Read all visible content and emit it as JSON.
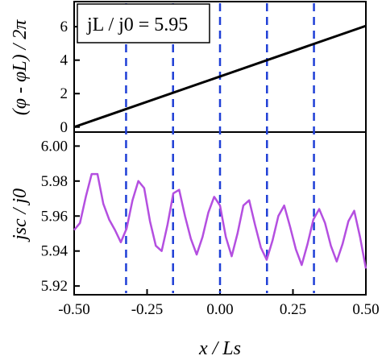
{
  "colors": {
    "phase_line": "#000000",
    "current_line": "#b44fe0",
    "dashed": "#1f3fd6",
    "frame": "#000000"
  },
  "top_axis_title": "(φ - φL) / 2π",
  "bottom_axis_title": "jsc / j0",
  "x_axis_title": "x / Ls",
  "annotation": "jL / j0 = 5.95",
  "chart_data": [
    {
      "type": "line",
      "panel": "top",
      "xlim": [
        -0.5,
        0.5
      ],
      "ylim": [
        -0.3,
        7.5
      ],
      "yticks": [
        0,
        2,
        4,
        6
      ],
      "ytick_labels": [
        "0",
        "2",
        "4",
        "6"
      ],
      "x": [
        -0.5,
        0.5
      ],
      "values": [
        0,
        6.05
      ],
      "vlines": [
        -0.322,
        -0.161,
        0.0,
        0.161,
        0.322
      ],
      "annotation": "jL / j0 = 5.95",
      "ylabel": "(φ - φL) / 2π"
    },
    {
      "type": "line",
      "panel": "bottom",
      "xlim": [
        -0.5,
        0.5
      ],
      "ylim": [
        5.915,
        6.008
      ],
      "yticks": [
        5.92,
        5.94,
        5.96,
        5.98,
        6.0
      ],
      "ytick_labels": [
        "5.92",
        "5.94",
        "5.96",
        "5.98",
        "6.00"
      ],
      "xticks": [
        -0.5,
        -0.25,
        0.0,
        0.25,
        0.5
      ],
      "xtick_labels": [
        "-0.50",
        "-0.25",
        "0.00",
        "0.25",
        "0.50"
      ],
      "x": [
        -0.5,
        -0.48,
        -0.46,
        -0.44,
        -0.42,
        -0.4,
        -0.38,
        -0.36,
        -0.34,
        -0.32,
        -0.3,
        -0.28,
        -0.26,
        -0.24,
        -0.22,
        -0.2,
        -0.18,
        -0.16,
        -0.14,
        -0.12,
        -0.1,
        -0.08,
        -0.06,
        -0.04,
        -0.02,
        0.0,
        0.02,
        0.04,
        0.06,
        0.08,
        0.1,
        0.12,
        0.14,
        0.16,
        0.18,
        0.2,
        0.22,
        0.24,
        0.26,
        0.28,
        0.3,
        0.32,
        0.34,
        0.36,
        0.38,
        0.4,
        0.42,
        0.44,
        0.46,
        0.48,
        0.5
      ],
      "values": [
        5.952,
        5.956,
        5.971,
        5.984,
        5.984,
        5.967,
        5.958,
        5.952,
        5.945,
        5.953,
        5.969,
        5.98,
        5.976,
        5.957,
        5.943,
        5.94,
        5.955,
        5.973,
        5.975,
        5.96,
        5.947,
        5.938,
        5.948,
        5.962,
        5.971,
        5.966,
        5.948,
        5.937,
        5.95,
        5.966,
        5.969,
        5.955,
        5.942,
        5.935,
        5.946,
        5.96,
        5.966,
        5.954,
        5.941,
        5.932,
        5.944,
        5.958,
        5.964,
        5.956,
        5.943,
        5.934,
        5.944,
        5.957,
        5.963,
        5.948,
        5.93
      ],
      "vlines": [
        -0.322,
        -0.161,
        0.0,
        0.161,
        0.322
      ],
      "xlabel": "x / Ls",
      "ylabel": "jsc / j0"
    }
  ]
}
